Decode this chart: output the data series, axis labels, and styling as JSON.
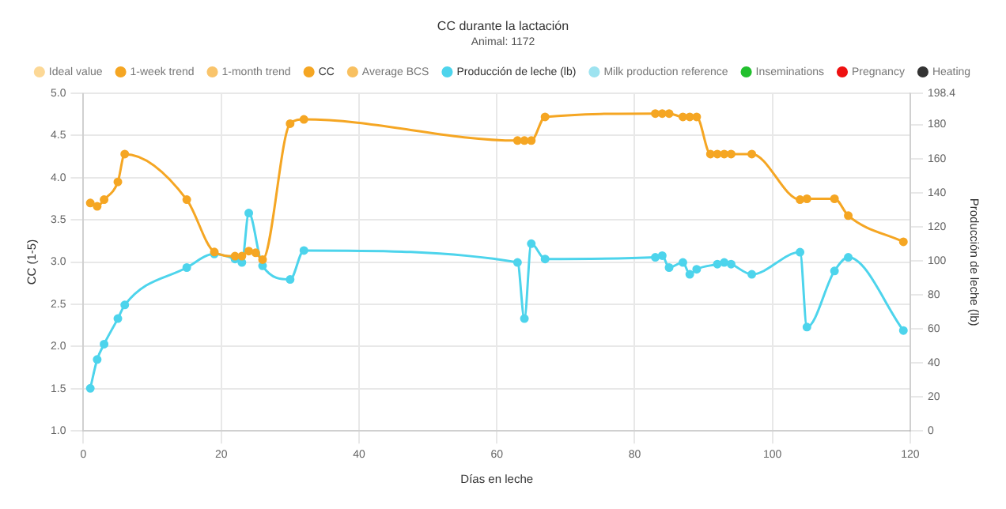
{
  "chart_data": {
    "type": "line",
    "title": "CC durante la lactación",
    "subtitle": "Animal: 1172",
    "xlabel": "Días en leche",
    "ylabel": "CC (1-5)",
    "y2label": "Producción de leche (lb)",
    "xlim": [
      0,
      120
    ],
    "xticks": [
      0,
      20,
      40,
      60,
      80,
      100,
      120
    ],
    "ylim": [
      1.0,
      5.0
    ],
    "yticks": [
      {
        "value": 1,
        "label": "1.0"
      },
      1.5,
      {
        "value": 2,
        "label": "2.0"
      },
      2.5,
      {
        "value": 3,
        "label": "3.0"
      },
      3.5,
      {
        "value": 4,
        "label": "4.0"
      },
      4.5,
      {
        "value": 5,
        "label": "5.0"
      }
    ],
    "y2lim": [
      0,
      198.4
    ],
    "y2ticks": [
      0,
      20,
      40,
      60,
      80,
      100,
      120,
      140,
      160,
      180,
      198.4
    ],
    "grid": true,
    "legend": "top",
    "marker": "circle",
    "line_style": "solid",
    "series": [
      {
        "name": "Ideal value",
        "color": "#fcd896"
      },
      {
        "name": "1-week trend",
        "color": "#f5a623"
      },
      {
        "name": "1-month trend",
        "color": "#f9c46b"
      },
      {
        "name": "CC",
        "color": "#f5a623",
        "x": [
          1,
          2,
          3,
          5,
          6,
          15,
          19,
          22,
          23,
          24,
          25,
          26,
          30,
          32,
          63,
          64,
          65,
          67,
          83,
          84,
          85,
          87,
          88,
          89,
          91,
          92,
          93,
          94,
          97,
          104,
          105,
          109,
          111,
          119
        ],
        "values": [
          3.7,
          3.66,
          3.74,
          3.95,
          4.28,
          3.74,
          3.12,
          3.07,
          3.07,
          3.13,
          3.11,
          3.03,
          4.64,
          4.69,
          4.44,
          4.44,
          4.44,
          4.72,
          4.76,
          4.76,
          4.76,
          4.72,
          4.72,
          4.72,
          4.28,
          4.28,
          4.28,
          4.28,
          4.28,
          3.74,
          3.75,
          3.75,
          3.55,
          3.24
        ]
      },
      {
        "name": "Average BCS",
        "color": "#f8c060"
      },
      {
        "name": "Producción de leche (lb)",
        "color": "#4dd4ec",
        "axis": "y2",
        "x": [
          1,
          2,
          3,
          5,
          6,
          15,
          19,
          22,
          23,
          24,
          26,
          30,
          32,
          63,
          64,
          65,
          67,
          83,
          84,
          85,
          87,
          88,
          89,
          92,
          93,
          94,
          97,
          104,
          105,
          109,
          111,
          119
        ],
        "values": [
          25,
          42,
          51,
          66,
          74,
          96,
          104,
          101,
          99,
          128,
          97,
          89,
          106,
          99,
          66,
          110,
          101,
          102,
          103,
          96,
          99,
          92,
          95,
          98,
          99,
          98,
          92,
          105,
          61,
          94,
          102,
          59
        ]
      },
      {
        "name": "Milk production reference",
        "color": "#9de3f0",
        "axis": "y2"
      },
      {
        "name": "Inseminations",
        "color": "#22c02e"
      },
      {
        "name": "Pregnancy",
        "color": "#ee1111"
      },
      {
        "name": "Heating",
        "color": "#333333"
      }
    ]
  }
}
